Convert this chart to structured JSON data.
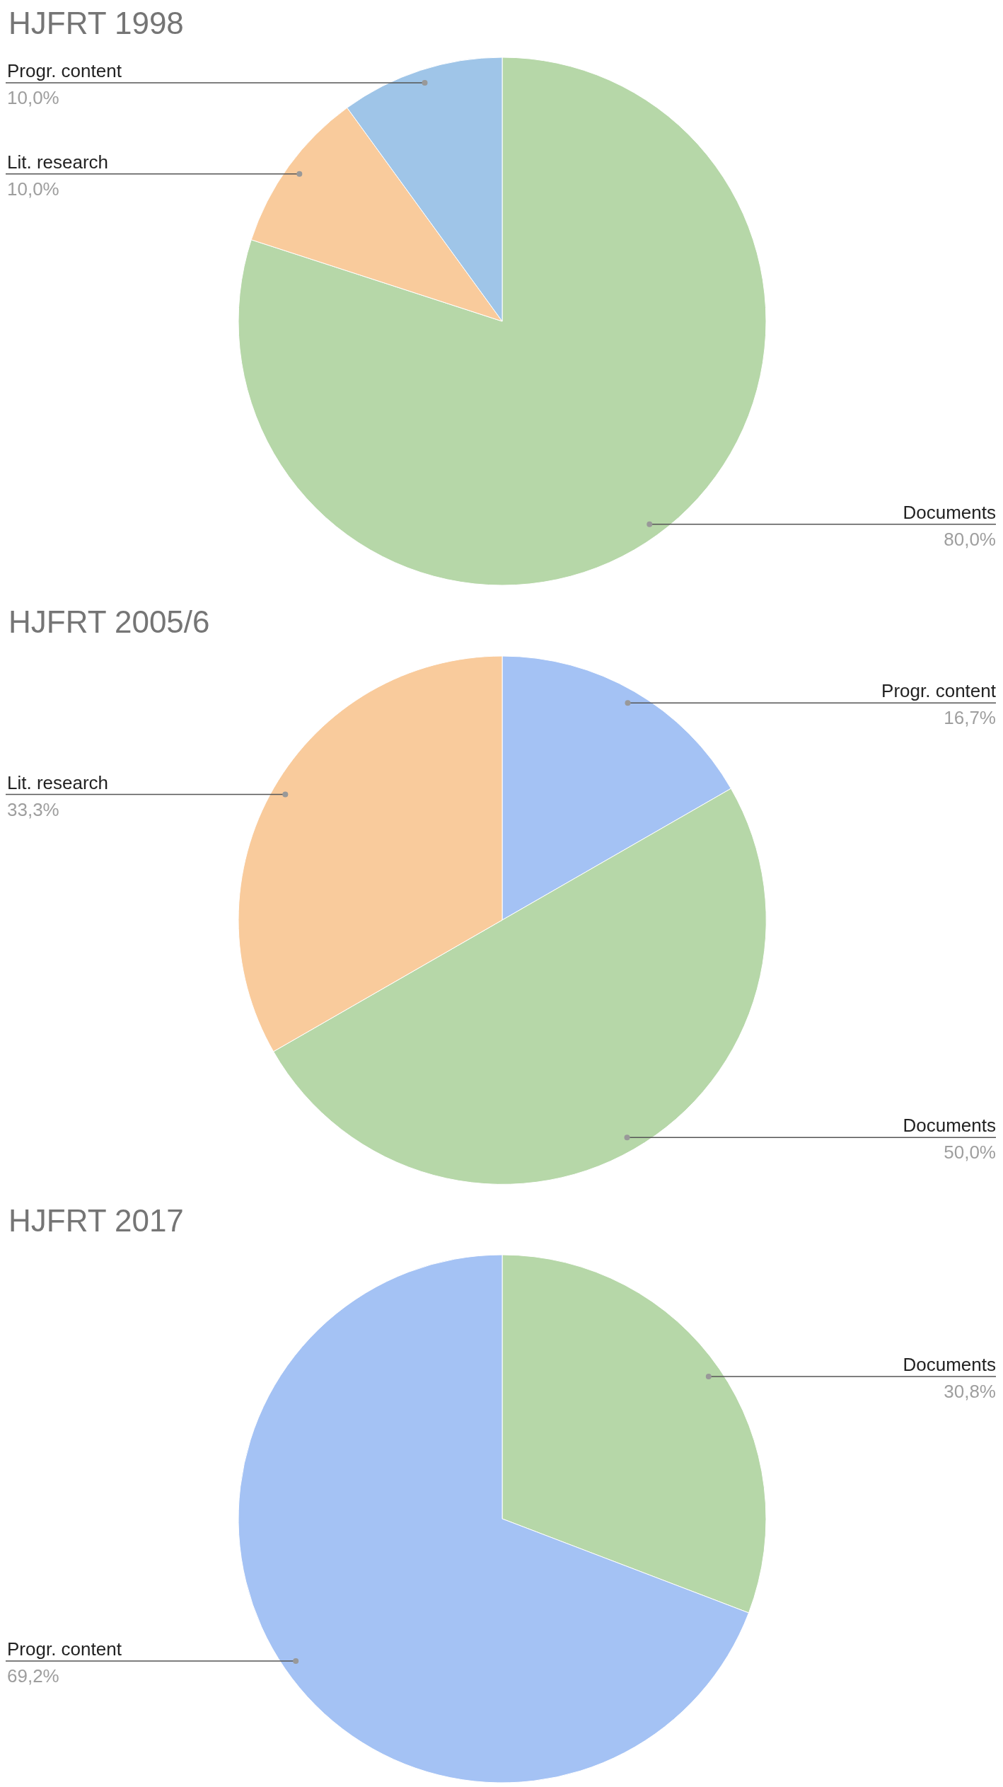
{
  "chart_data": [
    {
      "type": "pie",
      "title": "HJFRT 1998",
      "categories": [
        "Documents",
        "Lit. research",
        "Progr. content"
      ],
      "values": [
        80,
        10,
        10
      ],
      "colors": [
        "#b6d7a8",
        "#f9cb9c",
        "#9fc5e8"
      ],
      "value_labels": [
        "80,0%",
        "10,0%",
        "10,0%"
      ]
    },
    {
      "type": "pie",
      "title": "HJFRT 2005/6",
      "categories": [
        "Progr. content",
        "Documents",
        "Lit. research"
      ],
      "values": [
        16.7,
        50,
        33.3
      ],
      "colors": [
        "#a4c2f4",
        "#b6d7a8",
        "#f9cb9c"
      ],
      "value_labels": [
        "16,7%",
        "50,0%",
        "33,3%"
      ]
    },
    {
      "type": "pie",
      "title": "HJFRT 2017",
      "categories": [
        "Documents",
        "Progr. content"
      ],
      "values": [
        30.8,
        69.2
      ],
      "colors": [
        "#b6d7a8",
        "#a4c2f4"
      ],
      "value_labels": [
        "30,8%",
        "69,2%"
      ]
    }
  ]
}
